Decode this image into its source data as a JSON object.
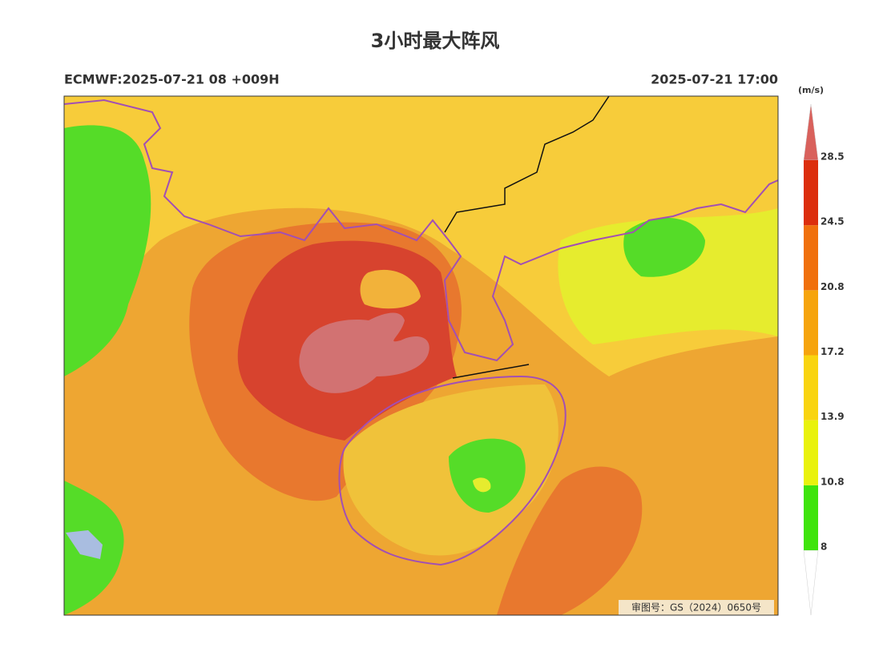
{
  "title": "3小时最大阵风",
  "model_run": "ECMWF:2025-07-21 08 +009H",
  "valid_time": "2025-07-21 17:00",
  "approval": "审图号：GS（2024）0650号",
  "legend": {
    "unit": "(m/s)",
    "levels": [
      8,
      10.8,
      13.9,
      17.2,
      20.8,
      24.5,
      28.5
    ],
    "colors": [
      "#3fe40c",
      "#e9f20c",
      "#f9d40f",
      "#f6a40c",
      "#f0700c",
      "#dc2e0c"
    ],
    "over_color": "#d9615c",
    "under_color": "#ffffff"
  }
}
